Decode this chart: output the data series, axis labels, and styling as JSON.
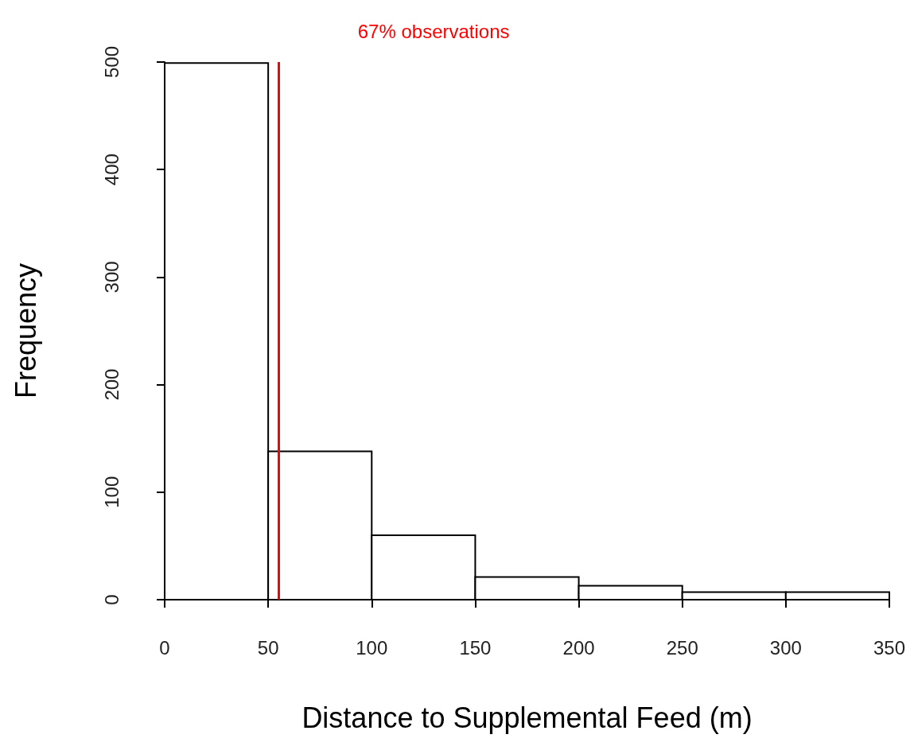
{
  "chart_data": {
    "type": "histogram",
    "xlabel": "Distance to Supplemental Feed (m)",
    "ylabel": "Frequency",
    "bins": [
      0,
      50,
      100,
      150,
      200,
      250,
      300,
      350
    ],
    "values": [
      499,
      138,
      60,
      21,
      13,
      7,
      7
    ],
    "color": "#ffffff",
    "xlim": [
      0,
      350
    ],
    "xticks": [
      0,
      50,
      100,
      150,
      200,
      250,
      300,
      350
    ],
    "ylim": [
      0,
      500
    ],
    "yticks": [
      0,
      100,
      200,
      300,
      400,
      500
    ],
    "grid": false,
    "ref_lines": [
      {
        "axis": "x",
        "value": 55,
        "label": "67% observations",
        "color": "#ff0000"
      }
    ]
  }
}
